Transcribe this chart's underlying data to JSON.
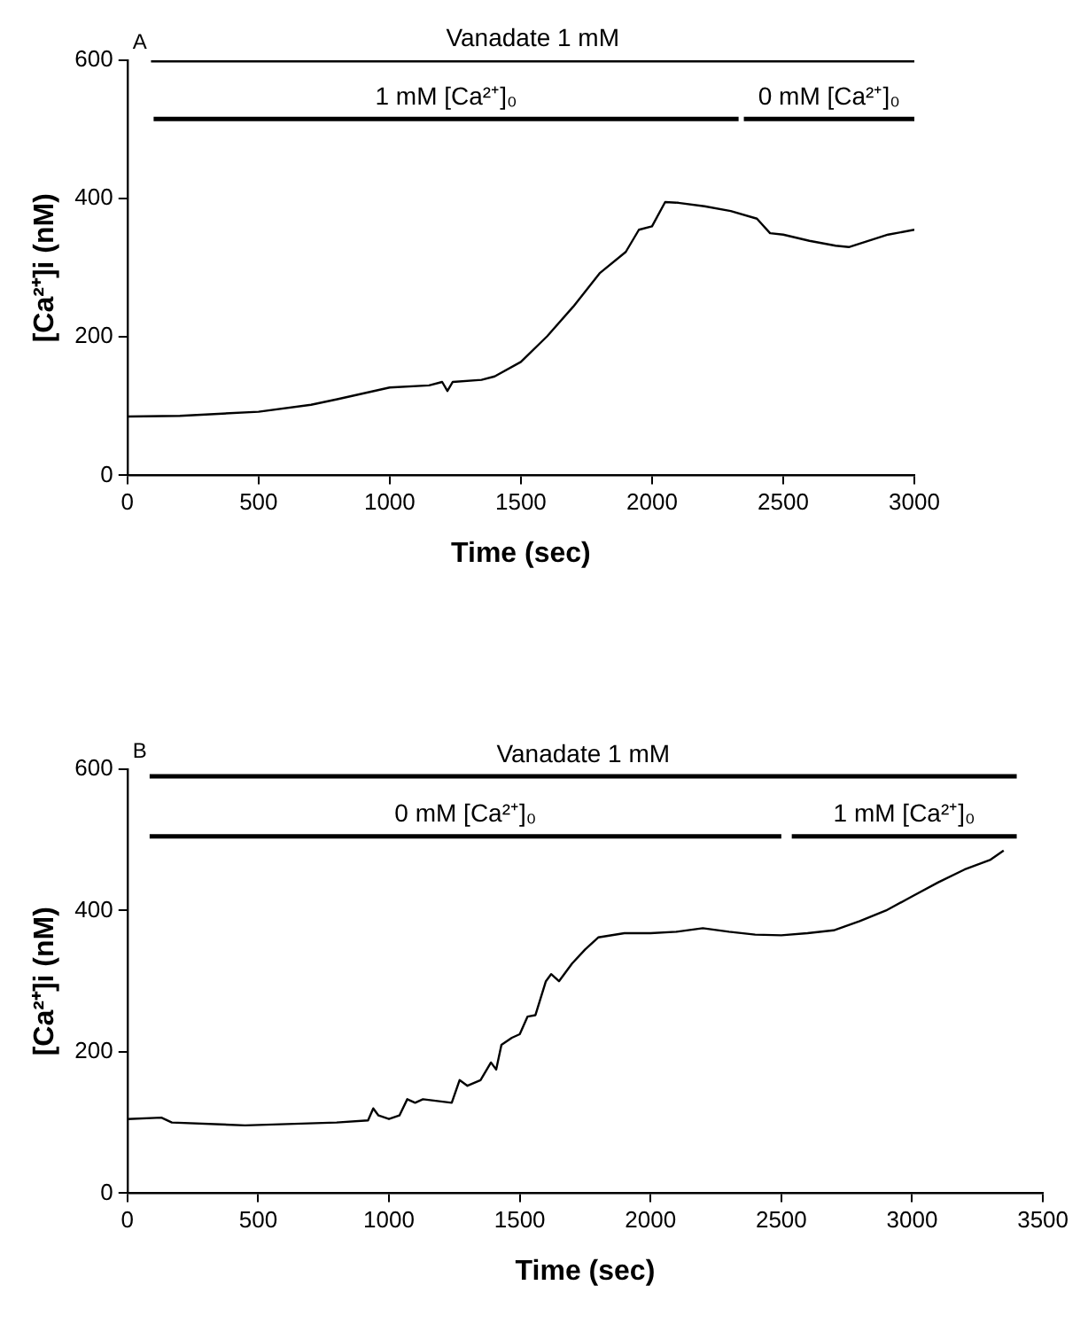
{
  "chart_data": [
    {
      "type": "line",
      "title": "A",
      "xlabel": "Time (sec)",
      "ylabel": "[Ca²⁺]i (nM)",
      "xlim": [
        0,
        3000
      ],
      "xticks": [
        0,
        500,
        1000,
        1500,
        2000,
        2500,
        3000
      ],
      "ylim": [
        0,
        600
      ],
      "yticks": [
        0,
        200,
        400,
        600
      ],
      "grid": false,
      "legend": false,
      "marker": "none",
      "line_style": "solid",
      "series": [
        {
          "name": "Vanadate 1 mM",
          "color": "#000000",
          "x": [
            90,
            3000
          ],
          "values": [
            600,
            600
          ]
        },
        {
          "name": "1 mM [Ca²⁺]₀",
          "color": "#000000",
          "x": [
            100,
            2330
          ],
          "values": [
            515,
            515
          ]
        },
        {
          "name": "0 mM [Ca²⁺]₀",
          "color": "#000000",
          "x": [
            2350,
            3000
          ],
          "values": [
            515,
            515
          ]
        },
        {
          "color": "#000000",
          "x": [
            0,
            200,
            500,
            700,
            800,
            1000,
            1150,
            1200,
            1220,
            1240,
            1350,
            1400,
            1500,
            1600,
            1700,
            1800,
            1900,
            1950,
            2000,
            2050,
            2100,
            2200,
            2300,
            2400,
            2450,
            2500,
            2600,
            2700,
            2750,
            2800,
            2900,
            3000
          ],
          "values": [
            85,
            86,
            92,
            102,
            110,
            127,
            130,
            135,
            122,
            135,
            138,
            143,
            164,
            201,
            244,
            292,
            323,
            355,
            360,
            395,
            394,
            389,
            382,
            371,
            350,
            348,
            339,
            332,
            330,
            336,
            348,
            355
          ]
        }
      ]
    },
    {
      "type": "line",
      "title": "B",
      "xlabel": "Time (sec)",
      "ylabel": "[Ca²⁺]i (nM)",
      "xlim": [
        0,
        3500
      ],
      "xticks": [
        0,
        500,
        1000,
        1500,
        2000,
        2500,
        3000,
        3500
      ],
      "ylim": [
        0,
        600
      ],
      "yticks": [
        0,
        200,
        400,
        600
      ],
      "grid": false,
      "legend": false,
      "marker": "none",
      "line_style": "solid",
      "series": [
        {
          "name": "Vanadate 1 mM",
          "color": "#000000",
          "x": [
            85,
            3400
          ],
          "values": [
            590,
            590
          ]
        },
        {
          "name": "0 mM [Ca²⁺]₀",
          "color": "#000000",
          "x": [
            85,
            2500
          ],
          "values": [
            505,
            505
          ]
        },
        {
          "name": "1 mM [Ca²⁺]₀",
          "color": "#000000",
          "x": [
            2540,
            3400
          ],
          "values": [
            505,
            505
          ]
        },
        {
          "color": "#000000",
          "x": [
            0,
            130,
            170,
            450,
            800,
            920,
            940,
            960,
            1000,
            1040,
            1070,
            1100,
            1130,
            1240,
            1270,
            1300,
            1350,
            1390,
            1410,
            1430,
            1470,
            1500,
            1530,
            1560,
            1600,
            1620,
            1650,
            1700,
            1750,
            1800,
            1900,
            2000,
            2100,
            2200,
            2300,
            2400,
            2500,
            2600,
            2700,
            2800,
            2900,
            3000,
            3100,
            3200,
            3300,
            3350
          ],
          "values": [
            105,
            107,
            100,
            96,
            100,
            103,
            120,
            110,
            105,
            110,
            133,
            128,
            133,
            128,
            160,
            152,
            160,
            185,
            175,
            210,
            220,
            225,
            250,
            252,
            300,
            310,
            300,
            325,
            345,
            362,
            368,
            368,
            370,
            375,
            370,
            366,
            365,
            368,
            372,
            385,
            400,
            420,
            440,
            458,
            472,
            485
          ]
        }
      ]
    }
  ]
}
